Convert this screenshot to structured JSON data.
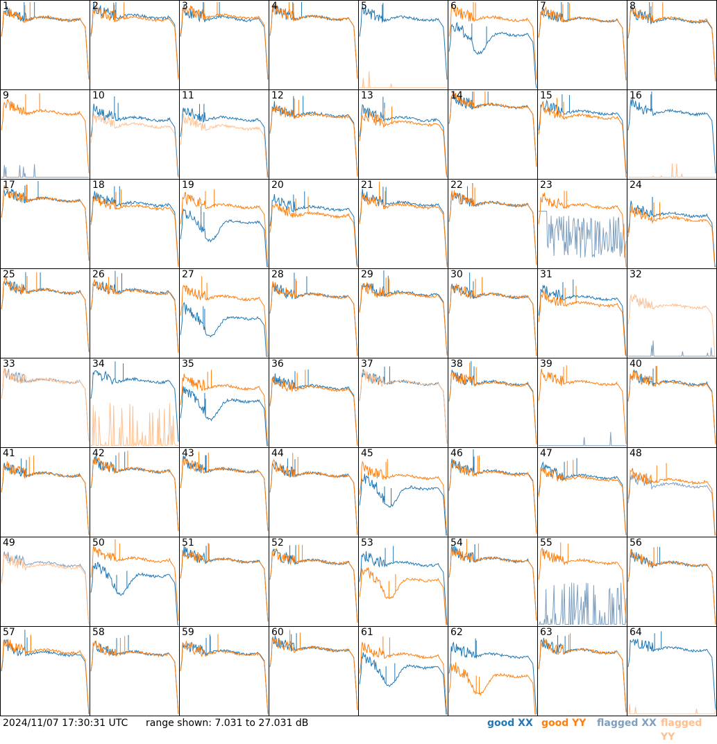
{
  "chart_data": {
    "type": "line",
    "footer": {
      "timestamp": "2024/11/07 17:30:31 UTC",
      "range": "range shown: 7.031 to 27.031 dB"
    },
    "ylim": [
      7.031,
      27.031
    ],
    "legend": {
      "position": "bottom-right",
      "items": [
        {
          "label": "good XX",
          "color": "#1f77b4"
        },
        {
          "label": "good YY",
          "color": "#ff7f0e"
        },
        {
          "label": "flagged XX",
          "color": "#7f9fbf"
        },
        {
          "label": "flagged YY",
          "color": "#ffbf8f"
        }
      ]
    },
    "colors": {
      "good_xx": "#1f77b4",
      "good_yy": "#ff7f0e",
      "flagged_xx": "#7f9fbf",
      "flagged_yy": "#ffbf8f"
    },
    "panels": [
      {
        "label": "1",
        "xx": "good",
        "yy": "good",
        "xx_level": 23.0,
        "yy_level": 23.0,
        "sep": 0.0
      },
      {
        "label": "2",
        "xx": "good",
        "yy": "good",
        "xx_level": 23.5,
        "yy_level": 23.0,
        "sep": 0.5
      },
      {
        "label": "3",
        "xx": "good",
        "yy": "good",
        "xx_level": 23.0,
        "yy_level": 23.5,
        "sep": 0.5
      },
      {
        "label": "4",
        "xx": "good",
        "yy": "good",
        "xx_level": 23.2,
        "yy_level": 23.2,
        "sep": 0.3
      },
      {
        "label": "5",
        "xx": "good",
        "yy": "flagged_low",
        "xx_level": 23.0,
        "yy_level": 7.1,
        "sep": 0.0
      },
      {
        "label": "6",
        "xx": "good_dip",
        "yy": "good",
        "xx_level": 19.5,
        "yy_level": 23.0,
        "sep": 2.5
      },
      {
        "label": "7",
        "xx": "good",
        "yy": "good",
        "xx_level": 22.8,
        "yy_level": 22.8,
        "sep": 0.2
      },
      {
        "label": "8",
        "xx": "good",
        "yy": "good",
        "xx_level": 22.6,
        "yy_level": 22.8,
        "sep": 0.2
      },
      {
        "label": "9",
        "xx": "flagged_low",
        "yy": "good",
        "xx_level": 7.5,
        "yy_level": 22.0,
        "sep": 0.0
      },
      {
        "label": "10",
        "xx": "good",
        "yy": "flagged",
        "xx_level": 20.5,
        "yy_level": 19.0,
        "sep": 1.0
      },
      {
        "label": "11",
        "xx": "good",
        "yy": "flagged",
        "xx_level": 20.5,
        "yy_level": 18.5,
        "sep": 1.5
      },
      {
        "label": "12",
        "xx": "good",
        "yy": "good",
        "xx_level": 21.5,
        "yy_level": 21.2,
        "sep": 0.4
      },
      {
        "label": "13",
        "xx": "good",
        "yy": "good",
        "xx_level": 20.5,
        "yy_level": 19.5,
        "sep": 0.8
      },
      {
        "label": "14",
        "xx": "good",
        "yy": "good",
        "xx_level": 23.5,
        "yy_level": 23.5,
        "sep": 0.1
      },
      {
        "label": "15",
        "xx": "good",
        "yy": "good",
        "xx_level": 22.0,
        "yy_level": 21.0,
        "sep": 1.0
      },
      {
        "label": "16",
        "xx": "good",
        "yy": "flagged_low",
        "xx_level": 22.0,
        "yy_level": 7.1,
        "sep": 0.0
      },
      {
        "label": "17",
        "xx": "good",
        "yy": "good",
        "xx_level": 22.5,
        "yy_level": 22.5,
        "sep": 0.1
      },
      {
        "label": "18",
        "xx": "good",
        "yy": "good",
        "xx_level": 21.5,
        "yy_level": 20.8,
        "sep": 0.8
      },
      {
        "label": "19",
        "xx": "good_dip",
        "yy": "good",
        "xx_level": 17.5,
        "yy_level": 21.0,
        "sep": 3.0
      },
      {
        "label": "20",
        "xx": "good",
        "yy": "good",
        "xx_level": 20.5,
        "yy_level": 19.0,
        "sep": 1.5
      },
      {
        "label": "21",
        "xx": "good",
        "yy": "good",
        "xx_level": 21.5,
        "yy_level": 21.0,
        "sep": 0.5
      },
      {
        "label": "22",
        "xx": "good",
        "yy": "good",
        "xx_level": 21.5,
        "yy_level": 21.5,
        "sep": 0.2
      },
      {
        "label": "23",
        "xx": "flagged_noisy",
        "yy": "good",
        "xx_level": 14.0,
        "yy_level": 21.0,
        "sep": 0.0
      },
      {
        "label": "24",
        "xx": "good",
        "yy": "good",
        "xx_level": 19.0,
        "yy_level": 18.0,
        "sep": 1.2
      },
      {
        "label": "25",
        "xx": "good",
        "yy": "good",
        "xx_level": 22.0,
        "yy_level": 22.0,
        "sep": 0.0
      },
      {
        "label": "26",
        "xx": "good",
        "yy": "good",
        "xx_level": 22.0,
        "yy_level": 21.8,
        "sep": 0.4
      },
      {
        "label": "27",
        "xx": "good_dip",
        "yy": "good",
        "xx_level": 16.0,
        "yy_level": 20.5,
        "sep": 3.5
      },
      {
        "label": "28",
        "xx": "good",
        "yy": "good",
        "xx_level": 21.0,
        "yy_level": 21.0,
        "sep": 0.3
      },
      {
        "label": "29",
        "xx": "good",
        "yy": "good",
        "xx_level": 21.5,
        "yy_level": 21.2,
        "sep": 0.4
      },
      {
        "label": "30",
        "xx": "good",
        "yy": "good",
        "xx_level": 21.0,
        "yy_level": 21.0,
        "sep": 0.3
      },
      {
        "label": "31",
        "xx": "good",
        "yy": "good",
        "xx_level": 20.5,
        "yy_level": 19.0,
        "sep": 1.5
      },
      {
        "label": "32",
        "xx": "flagged_low",
        "yy": "flagged",
        "xx_level": 7.1,
        "yy_level": 18.5,
        "sep": 0.0
      },
      {
        "label": "33",
        "xx": "flagged",
        "yy": "flagged",
        "xx_level": 22.0,
        "yy_level": 22.0,
        "sep": 0.2
      },
      {
        "label": "34",
        "xx": "good",
        "yy": "flagged_spiky",
        "xx_level": 22.0,
        "yy_level": 9.0,
        "sep": 0.0
      },
      {
        "label": "35",
        "xx": "good_dip",
        "yy": "good",
        "xx_level": 17.5,
        "yy_level": 20.5,
        "sep": 2.0
      },
      {
        "label": "36",
        "xx": "good",
        "yy": "good",
        "xx_level": 20.5,
        "yy_level": 20.2,
        "sep": 0.4
      },
      {
        "label": "37",
        "xx": "good",
        "yy": "flagged",
        "xx_level": 21.5,
        "yy_level": 21.5,
        "sep": 0.2
      },
      {
        "label": "38",
        "xx": "good",
        "yy": "good",
        "xx_level": 21.5,
        "yy_level": 21.3,
        "sep": 0.3
      },
      {
        "label": "39",
        "xx": "flagged_low",
        "yy": "good",
        "xx_level": 7.2,
        "yy_level": 21.5,
        "sep": 0.0
      },
      {
        "label": "40",
        "xx": "good",
        "yy": "good",
        "xx_level": 21.5,
        "yy_level": 21.3,
        "sep": 0.3
      },
      {
        "label": "41",
        "xx": "good",
        "yy": "good",
        "xx_level": 21.0,
        "yy_level": 21.0,
        "sep": 0.4
      },
      {
        "label": "42",
        "xx": "good",
        "yy": "good",
        "xx_level": 22.0,
        "yy_level": 22.0,
        "sep": 0.1
      },
      {
        "label": "43",
        "xx": "good",
        "yy": "good",
        "xx_level": 22.0,
        "yy_level": 22.0,
        "sep": 0.2
      },
      {
        "label": "44",
        "xx": "good",
        "yy": "good",
        "xx_level": 21.0,
        "yy_level": 21.0,
        "sep": 0.3
      },
      {
        "label": "45",
        "xx": "good_dip",
        "yy": "good",
        "xx_level": 18.0,
        "yy_level": 20.5,
        "sep": 2.5
      },
      {
        "label": "46",
        "xx": "good",
        "yy": "good",
        "xx_level": 21.5,
        "yy_level": 21.3,
        "sep": 0.3
      },
      {
        "label": "47",
        "xx": "good",
        "yy": "good",
        "xx_level": 20.5,
        "yy_level": 20.0,
        "sep": 0.6
      },
      {
        "label": "48",
        "xx": "flagged",
        "yy": "good",
        "xx_level": 18.5,
        "yy_level": 19.5,
        "sep": 1.0
      },
      {
        "label": "49",
        "xx": "flagged",
        "yy": "flagged",
        "xx_level": 21.0,
        "yy_level": 20.5,
        "sep": 0.4
      },
      {
        "label": "50",
        "xx": "good_dip",
        "yy": "good",
        "xx_level": 18.5,
        "yy_level": 22.0,
        "sep": 2.5
      },
      {
        "label": "51",
        "xx": "good",
        "yy": "good",
        "xx_level": 21.8,
        "yy_level": 21.8,
        "sep": 0.2
      },
      {
        "label": "52",
        "xx": "good",
        "yy": "good",
        "xx_level": 21.5,
        "yy_level": 21.5,
        "sep": 0.2
      },
      {
        "label": "53",
        "xx": "good",
        "yy": "good_dip",
        "xx_level": 21.0,
        "yy_level": 17.5,
        "sep": 2.5
      },
      {
        "label": "54",
        "xx": "good",
        "yy": "good",
        "xx_level": 22.0,
        "yy_level": 22.0,
        "sep": 0.1
      },
      {
        "label": "55",
        "xx": "flagged_spiky",
        "yy": "good",
        "xx_level": 9.0,
        "yy_level": 21.5,
        "sep": 0.0
      },
      {
        "label": "56",
        "xx": "good",
        "yy": "good",
        "xx_level": 21.0,
        "yy_level": 21.0,
        "sep": 0.4
      },
      {
        "label": "57",
        "xx": "good",
        "yy": "good",
        "xx_level": 21.0,
        "yy_level": 21.5,
        "sep": 0.6
      },
      {
        "label": "58",
        "xx": "good",
        "yy": "good",
        "xx_level": 21.0,
        "yy_level": 21.0,
        "sep": 0.4
      },
      {
        "label": "59",
        "xx": "good",
        "yy": "good",
        "xx_level": 21.2,
        "yy_level": 21.0,
        "sep": 0.4
      },
      {
        "label": "60",
        "xx": "good",
        "yy": "good",
        "xx_level": 22.0,
        "yy_level": 22.0,
        "sep": 0.1
      },
      {
        "label": "61",
        "xx": "good_dip",
        "yy": "good",
        "xx_level": 18.0,
        "yy_level": 20.5,
        "sep": 2.5
      },
      {
        "label": "62",
        "xx": "good",
        "yy": "good_dip",
        "xx_level": 20.5,
        "yy_level": 16.0,
        "sep": 3.0
      },
      {
        "label": "63",
        "xx": "good",
        "yy": "good",
        "xx_level": 21.5,
        "yy_level": 21.5,
        "sep": 0.2
      },
      {
        "label": "64",
        "xx": "good",
        "yy": "flagged_low",
        "xx_level": 22.0,
        "yy_level": 7.1,
        "sep": 0.0
      }
    ]
  }
}
